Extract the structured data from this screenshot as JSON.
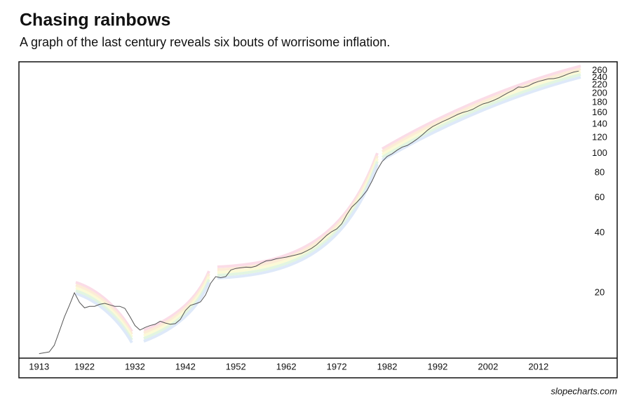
{
  "chart_data": {
    "type": "line",
    "title": "Chasing rainbows",
    "subtitle": "A graph of the last century reveals six bouts of worrisome inflation.",
    "source": "slopecharts.com",
    "x": [
      1913,
      1914,
      1915,
      1916,
      1917,
      1918,
      1919,
      1920,
      1921,
      1922,
      1923,
      1924,
      1925,
      1926,
      1927,
      1928,
      1929,
      1930,
      1931,
      1932,
      1933,
      1934,
      1935,
      1936,
      1937,
      1938,
      1939,
      1940,
      1941,
      1942,
      1943,
      1944,
      1945,
      1946,
      1947,
      1948,
      1949,
      1950,
      1951,
      1952,
      1953,
      1954,
      1955,
      1956,
      1957,
      1958,
      1959,
      1960,
      1961,
      1962,
      1963,
      1964,
      1965,
      1966,
      1967,
      1968,
      1969,
      1970,
      1971,
      1972,
      1973,
      1974,
      1975,
      1976,
      1977,
      1978,
      1979,
      1980,
      1981,
      1982,
      1983,
      1984,
      1985,
      1986,
      1987,
      1988,
      1989,
      1990,
      1991,
      1992,
      1993,
      1994,
      1995,
      1996,
      1997,
      1998,
      1999,
      2000,
      2001,
      2002,
      2003,
      2004,
      2005,
      2006,
      2007,
      2008,
      2009,
      2010,
      2011,
      2012,
      2013,
      2014,
      2015,
      2016,
      2017,
      2018,
      2019,
      2020
    ],
    "values": [
      9.9,
      10.0,
      10.1,
      10.9,
      12.8,
      15.1,
      17.3,
      20.0,
      17.9,
      16.8,
      17.1,
      17.1,
      17.5,
      17.7,
      17.4,
      17.1,
      17.1,
      16.7,
      15.2,
      13.7,
      13.0,
      13.4,
      13.7,
      13.9,
      14.4,
      14.1,
      13.9,
      14.0,
      14.7,
      16.3,
      17.3,
      17.6,
      18.0,
      19.5,
      22.3,
      24.1,
      23.8,
      24.1,
      26.0,
      26.5,
      26.7,
      26.9,
      26.8,
      27.2,
      28.1,
      28.9,
      29.1,
      29.6,
      29.9,
      30.2,
      30.6,
      31.0,
      31.5,
      32.4,
      33.4,
      34.8,
      36.7,
      38.8,
      40.5,
      41.8,
      44.4,
      49.3,
      53.8,
      56.9,
      60.6,
      65.2,
      72.6,
      82.4,
      90.9,
      96.5,
      99.6,
      103.9,
      107.6,
      109.6,
      113.6,
      118.3,
      124.0,
      130.7,
      136.2,
      140.3,
      144.5,
      148.2,
      152.4,
      156.9,
      160.5,
      163.0,
      166.6,
      172.2,
      177.1,
      179.9,
      184.0,
      188.9,
      195.3,
      201.6,
      207.3,
      215.3,
      214.5,
      218.1,
      224.9,
      229.6,
      233.0,
      236.7,
      237.0,
      240.0,
      245.1,
      251.1,
      255.7,
      258.8
    ],
    "color": "#555555",
    "xlim": [
      1909,
      2027.6
    ],
    "xticks": [
      1913,
      1922,
      1932,
      1942,
      1952,
      1962,
      1972,
      1982,
      1992,
      2002,
      2012
    ],
    "ylim": [
      9.4,
      288
    ],
    "yticks": [
      20,
      40,
      60,
      80,
      100,
      120,
      140,
      160,
      180,
      200,
      220,
      240,
      260
    ],
    "ylog": true
  }
}
